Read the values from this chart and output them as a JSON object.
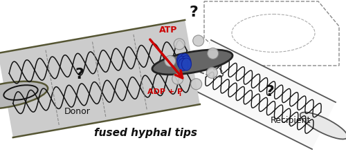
{
  "fig_width": 5.0,
  "fig_height": 2.23,
  "dpi": 100,
  "bg_color": "#ffffff",
  "donor_label": "Donor",
  "recipient_label": "Recipient",
  "fused_label": "fused hyphal tips",
  "atp_label": "ATP",
  "adp_label": "ADP + P",
  "adp_subscript": "i",
  "question_marks": [
    "?",
    "?",
    "?"
  ],
  "donor_fill": "#cccccc",
  "donor_stroke": "#555533",
  "recipient_fill": "#f5f5f5",
  "recipient_stroke": "#555555",
  "dna_color": "#111111",
  "blue_hexamer": "#2244bb",
  "pore_gray": "#888888",
  "arrow_color": "#cc0000",
  "atp_color": "#cc0000",
  "fused_fontsize": 11,
  "donor_fontsize": 9,
  "recipient_fontsize": 9,
  "qmark_fontsize": 16
}
